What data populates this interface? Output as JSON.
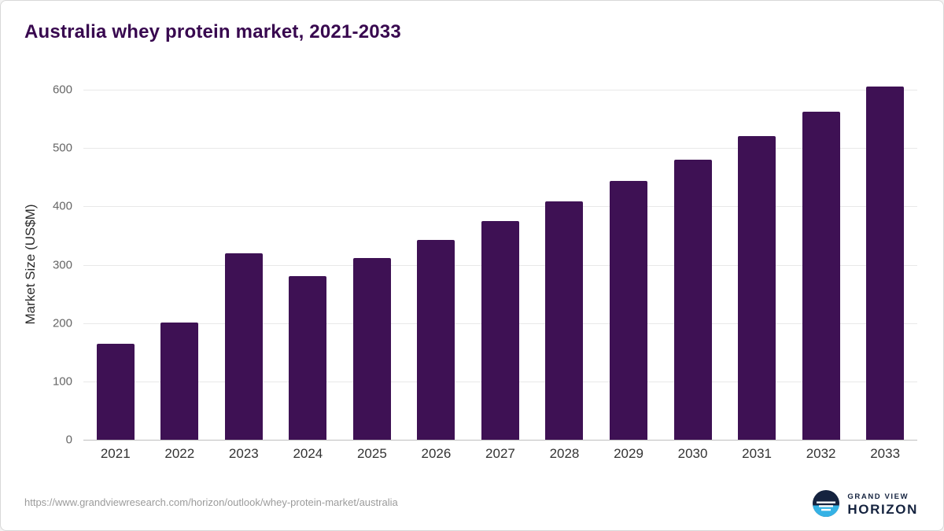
{
  "chart_data": {
    "type": "bar",
    "title": "Australia whey protein market, 2021-2033",
    "categories": [
      "2021",
      "2022",
      "2023",
      "2024",
      "2025",
      "2026",
      "2027",
      "2028",
      "2029",
      "2030",
      "2031",
      "2032",
      "2033"
    ],
    "values": [
      165,
      201,
      320,
      281,
      311,
      342,
      375,
      409,
      444,
      480,
      520,
      562,
      605
    ],
    "xlabel": "",
    "ylabel": "Market Size (US$M)",
    "ylim": [
      0,
      600
    ],
    "yticks": [
      0,
      100,
      200,
      300,
      400,
      500,
      600
    ],
    "grid": "horizontal",
    "legend": "none",
    "bar_color": "#3e1154"
  },
  "footer": {
    "source_url": "https://www.grandviewresearch.com/horizon/outlook/whey-protein-market/australia",
    "logo": {
      "line1": "GRAND VIEW",
      "line2": "HORIZON"
    }
  }
}
